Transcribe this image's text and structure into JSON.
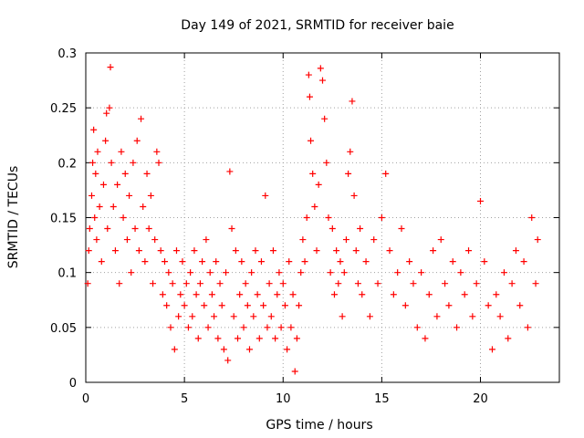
{
  "chart_data": {
    "type": "scatter",
    "title": "Day 149 of 2021, SRMTID for receiver baie",
    "xlabel": "GPS time / hours",
    "ylabel": "SRMTID / TECUs",
    "xlim": [
      0,
      24
    ],
    "ylim": [
      0,
      0.3
    ],
    "xticks": [
      0,
      5,
      10,
      15,
      20
    ],
    "xtick_labels": [
      "0",
      "5",
      "10",
      "15",
      "20"
    ],
    "yticks": [
      0,
      0.05,
      0.1,
      0.15,
      0.2,
      0.25,
      0.3
    ],
    "ytick_labels": [
      "0",
      "0.05",
      "0.1",
      "0.15",
      "0.2",
      "0.25",
      "0.3"
    ],
    "grid": true,
    "marker": "+",
    "color": "#ff0000",
    "series": [
      {
        "name": "SRMTID",
        "points": [
          [
            0.1,
            0.09
          ],
          [
            0.15,
            0.12
          ],
          [
            0.2,
            0.14
          ],
          [
            0.3,
            0.17
          ],
          [
            0.35,
            0.2
          ],
          [
            0.4,
            0.23
          ],
          [
            0.45,
            0.15
          ],
          [
            0.5,
            0.19
          ],
          [
            0.55,
            0.13
          ],
          [
            0.6,
            0.21
          ],
          [
            0.7,
            0.16
          ],
          [
            0.8,
            0.11
          ],
          [
            0.9,
            0.18
          ],
          [
            1.0,
            0.22
          ],
          [
            1.05,
            0.245
          ],
          [
            1.1,
            0.14
          ],
          [
            1.2,
            0.25
          ],
          [
            1.25,
            0.287
          ],
          [
            1.3,
            0.2
          ],
          [
            1.4,
            0.16
          ],
          [
            1.5,
            0.12
          ],
          [
            1.6,
            0.18
          ],
          [
            1.7,
            0.09
          ],
          [
            1.8,
            0.21
          ],
          [
            1.9,
            0.15
          ],
          [
            2.0,
            0.19
          ],
          [
            2.1,
            0.13
          ],
          [
            2.2,
            0.17
          ],
          [
            2.3,
            0.1
          ],
          [
            2.4,
            0.2
          ],
          [
            2.5,
            0.14
          ],
          [
            2.6,
            0.22
          ],
          [
            2.7,
            0.12
          ],
          [
            2.8,
            0.24
          ],
          [
            2.9,
            0.16
          ],
          [
            3.0,
            0.11
          ],
          [
            3.1,
            0.19
          ],
          [
            3.2,
            0.14
          ],
          [
            3.3,
            0.17
          ],
          [
            3.4,
            0.09
          ],
          [
            3.5,
            0.13
          ],
          [
            3.6,
            0.21
          ],
          [
            3.7,
            0.2
          ],
          [
            3.8,
            0.12
          ],
          [
            3.9,
            0.08
          ],
          [
            4.0,
            0.11
          ],
          [
            4.1,
            0.07
          ],
          [
            4.2,
            0.1
          ],
          [
            4.3,
            0.05
          ],
          [
            4.4,
            0.09
          ],
          [
            4.5,
            0.03
          ],
          [
            4.6,
            0.12
          ],
          [
            4.7,
            0.06
          ],
          [
            4.8,
            0.08
          ],
          [
            4.9,
            0.11
          ],
          [
            5.0,
            0.07
          ],
          [
            5.1,
            0.09
          ],
          [
            5.2,
            0.05
          ],
          [
            5.3,
            0.1
          ],
          [
            5.4,
            0.06
          ],
          [
            5.5,
            0.12
          ],
          [
            5.6,
            0.08
          ],
          [
            5.7,
            0.04
          ],
          [
            5.8,
            0.09
          ],
          [
            5.9,
            0.11
          ],
          [
            6.0,
            0.07
          ],
          [
            6.1,
            0.13
          ],
          [
            6.2,
            0.05
          ],
          [
            6.3,
            0.1
          ],
          [
            6.4,
            0.08
          ],
          [
            6.5,
            0.06
          ],
          [
            6.6,
            0.11
          ],
          [
            6.7,
            0.04
          ],
          [
            6.8,
            0.09
          ],
          [
            6.9,
            0.07
          ],
          [
            7.0,
            0.03
          ],
          [
            7.1,
            0.1
          ],
          [
            7.2,
            0.02
          ],
          [
            7.3,
            0.192
          ],
          [
            7.4,
            0.14
          ],
          [
            7.5,
            0.06
          ],
          [
            7.6,
            0.12
          ],
          [
            7.7,
            0.04
          ],
          [
            7.8,
            0.08
          ],
          [
            7.9,
            0.11
          ],
          [
            8.0,
            0.05
          ],
          [
            8.1,
            0.09
          ],
          [
            8.2,
            0.07
          ],
          [
            8.3,
            0.03
          ],
          [
            8.4,
            0.1
          ],
          [
            8.5,
            0.06
          ],
          [
            8.6,
            0.12
          ],
          [
            8.7,
            0.08
          ],
          [
            8.8,
            0.04
          ],
          [
            8.9,
            0.11
          ],
          [
            9.0,
            0.07
          ],
          [
            9.1,
            0.17
          ],
          [
            9.2,
            0.05
          ],
          [
            9.3,
            0.09
          ],
          [
            9.4,
            0.06
          ],
          [
            9.5,
            0.12
          ],
          [
            9.6,
            0.04
          ],
          [
            9.7,
            0.08
          ],
          [
            9.8,
            0.1
          ],
          [
            9.9,
            0.05
          ],
          [
            10.0,
            0.09
          ],
          [
            10.1,
            0.07
          ],
          [
            10.2,
            0.03
          ],
          [
            10.3,
            0.11
          ],
          [
            10.4,
            0.05
          ],
          [
            10.5,
            0.08
          ],
          [
            10.6,
            0.01
          ],
          [
            10.7,
            0.04
          ],
          [
            10.8,
            0.07
          ],
          [
            10.9,
            0.1
          ],
          [
            11.0,
            0.13
          ],
          [
            11.1,
            0.11
          ],
          [
            11.2,
            0.15
          ],
          [
            11.3,
            0.28
          ],
          [
            11.35,
            0.26
          ],
          [
            11.4,
            0.22
          ],
          [
            11.5,
            0.19
          ],
          [
            11.6,
            0.16
          ],
          [
            11.7,
            0.12
          ],
          [
            11.8,
            0.18
          ],
          [
            11.9,
            0.286
          ],
          [
            12.0,
            0.275
          ],
          [
            12.1,
            0.24
          ],
          [
            12.2,
            0.2
          ],
          [
            12.3,
            0.15
          ],
          [
            12.4,
            0.1
          ],
          [
            12.5,
            0.14
          ],
          [
            12.6,
            0.08
          ],
          [
            12.7,
            0.12
          ],
          [
            12.8,
            0.09
          ],
          [
            12.9,
            0.11
          ],
          [
            13.0,
            0.06
          ],
          [
            13.1,
            0.1
          ],
          [
            13.2,
            0.13
          ],
          [
            13.3,
            0.19
          ],
          [
            13.4,
            0.21
          ],
          [
            13.5,
            0.256
          ],
          [
            13.6,
            0.17
          ],
          [
            13.7,
            0.12
          ],
          [
            13.8,
            0.09
          ],
          [
            13.9,
            0.14
          ],
          [
            14.0,
            0.08
          ],
          [
            14.2,
            0.11
          ],
          [
            14.4,
            0.06
          ],
          [
            14.6,
            0.13
          ],
          [
            14.8,
            0.09
          ],
          [
            15.0,
            0.15
          ],
          [
            15.2,
            0.19
          ],
          [
            15.4,
            0.12
          ],
          [
            15.6,
            0.08
          ],
          [
            15.8,
            0.1
          ],
          [
            16.0,
            0.14
          ],
          [
            16.2,
            0.07
          ],
          [
            16.4,
            0.11
          ],
          [
            16.6,
            0.09
          ],
          [
            16.8,
            0.05
          ],
          [
            17.0,
            0.1
          ],
          [
            17.2,
            0.04
          ],
          [
            17.4,
            0.08
          ],
          [
            17.6,
            0.12
          ],
          [
            17.8,
            0.06
          ],
          [
            18.0,
            0.13
          ],
          [
            18.2,
            0.09
          ],
          [
            18.4,
            0.07
          ],
          [
            18.6,
            0.11
          ],
          [
            18.8,
            0.05
          ],
          [
            19.0,
            0.1
          ],
          [
            19.2,
            0.08
          ],
          [
            19.4,
            0.12
          ],
          [
            19.6,
            0.06
          ],
          [
            19.8,
            0.09
          ],
          [
            20.0,
            0.165
          ],
          [
            20.2,
            0.11
          ],
          [
            20.4,
            0.07
          ],
          [
            20.6,
            0.03
          ],
          [
            20.8,
            0.08
          ],
          [
            21.0,
            0.06
          ],
          [
            21.2,
            0.1
          ],
          [
            21.4,
            0.04
          ],
          [
            21.6,
            0.09
          ],
          [
            21.8,
            0.12
          ],
          [
            22.0,
            0.07
          ],
          [
            22.2,
            0.11
          ],
          [
            22.4,
            0.05
          ],
          [
            22.6,
            0.15
          ],
          [
            22.8,
            0.09
          ],
          [
            22.9,
            0.13
          ]
        ]
      }
    ]
  }
}
